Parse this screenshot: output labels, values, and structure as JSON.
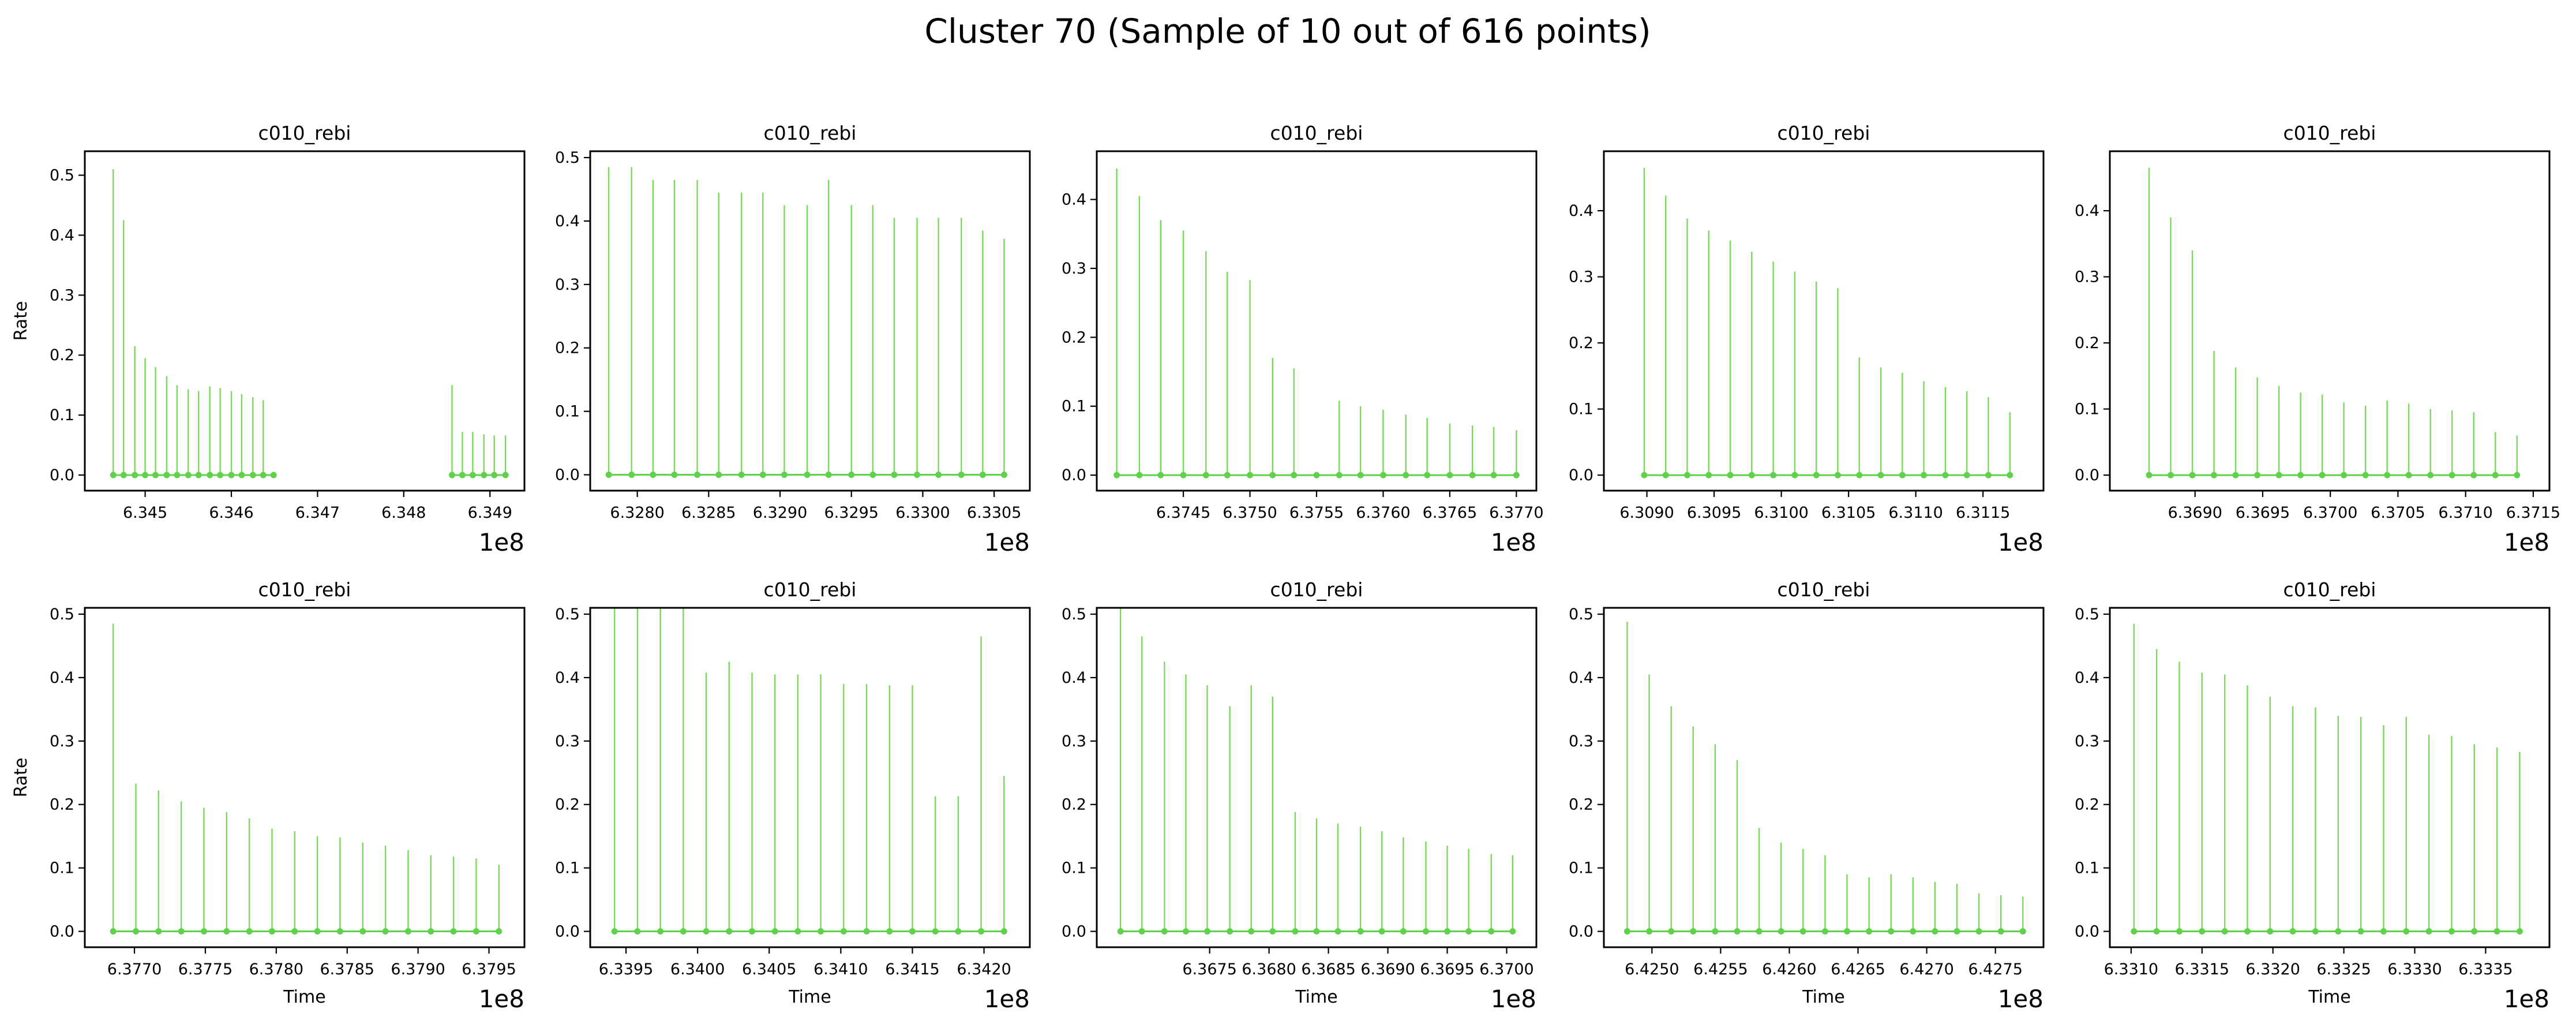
{
  "figure": {
    "title": "Cluster 70 (Sample of 10 out of 616 points)",
    "stem_color": "#79d95f",
    "marker_color": "#5fd14a"
  },
  "chart_data": [
    {
      "type": "stem",
      "title": "c010_rebi",
      "xlabel": "",
      "ylabel": "Rate",
      "x_offset_label": "1e8",
      "xlim": [
        6.3443,
        6.3494
      ],
      "ylim": [
        -0.026,
        0.54
      ],
      "xticks": [
        6.345,
        6.346,
        6.347,
        6.348,
        6.349
      ],
      "xtick_labels": [
        "6.345",
        "6.346",
        "6.347",
        "6.348",
        "6.349"
      ],
      "yticks": [
        0.0,
        0.1,
        0.2,
        0.3,
        0.4,
        0.5
      ],
      "ytick_labels": [
        "0.0",
        "0.1",
        "0.2",
        "0.3",
        "0.4",
        "0.5"
      ],
      "x": [
        6.34463,
        6.34475,
        6.34488,
        6.345,
        6.34512,
        6.34525,
        6.34537,
        6.3455,
        6.34562,
        6.34575,
        6.34587,
        6.346,
        6.34612,
        6.34625,
        6.34637,
        6.34649,
        6.34856,
        6.34868,
        6.3488,
        6.34893,
        6.34905,
        6.34918
      ],
      "y": [
        0.51,
        0.425,
        0.215,
        0.195,
        0.18,
        0.165,
        0.15,
        0.143,
        0.14,
        0.148,
        0.145,
        0.14,
        0.135,
        0.13,
        0.125,
        0.0,
        0.15,
        0.072,
        0.072,
        0.068,
        0.066,
        0.066
      ]
    },
    {
      "type": "stem",
      "title": "c010_rebi",
      "xlabel": "",
      "ylabel": "",
      "x_offset_label": "1e8",
      "xlim": [
        6.32767,
        6.33075
      ],
      "ylim": [
        -0.025,
        0.51
      ],
      "xticks": [
        6.328,
        6.3285,
        6.329,
        6.3295,
        6.33,
        6.3305
      ],
      "xtick_labels": [
        "6.3280",
        "6.3285",
        "6.3290",
        "6.3295",
        "6.3300",
        "6.3305"
      ],
      "yticks": [
        0.0,
        0.1,
        0.2,
        0.3,
        0.4,
        0.5
      ],
      "ytick_labels": [
        "0.0",
        "0.1",
        "0.2",
        "0.3",
        "0.4",
        "0.5"
      ],
      "x": [
        6.3278,
        6.32796,
        6.32811,
        6.32826,
        6.32842,
        6.32857,
        6.32873,
        6.32888,
        6.32903,
        6.32919,
        6.32934,
        6.3295,
        6.32965,
        6.3298,
        6.32996,
        6.33011,
        6.33027,
        6.33042,
        6.33057
      ],
      "y": [
        0.485,
        0.485,
        0.465,
        0.465,
        0.465,
        0.445,
        0.445,
        0.445,
        0.425,
        0.425,
        0.465,
        0.425,
        0.425,
        0.405,
        0.405,
        0.405,
        0.405,
        0.385,
        0.372
      ]
    },
    {
      "type": "stem",
      "title": "c010_rebi",
      "xlabel": "",
      "ylabel": "",
      "x_offset_label": "1e8",
      "xlim": [
        6.37385,
        6.37715
      ],
      "ylim": [
        -0.0225,
        0.47
      ],
      "xticks": [
        6.3745,
        6.375,
        6.3755,
        6.376,
        6.3765,
        6.377
      ],
      "xtick_labels": [
        "6.3745",
        "6.3750",
        "6.3755",
        "6.3760",
        "6.3765",
        "6.3770"
      ],
      "yticks": [
        0.0,
        0.1,
        0.2,
        0.3,
        0.4
      ],
      "ytick_labels": [
        "0.0",
        "0.1",
        "0.2",
        "0.3",
        "0.4"
      ],
      "x": [
        6.374,
        6.37417,
        6.37433,
        6.3745,
        6.37467,
        6.37483,
        6.375,
        6.37517,
        6.37533,
        6.3755,
        6.37567,
        6.37583,
        6.376,
        6.37617,
        6.37633,
        6.3765,
        6.37667,
        6.37683,
        6.377
      ],
      "y": [
        0.445,
        0.405,
        0.37,
        0.355,
        0.325,
        0.295,
        0.283,
        0.17,
        0.155,
        0.0,
        0.108,
        0.1,
        0.095,
        0.088,
        0.083,
        0.075,
        0.072,
        0.07,
        0.065
      ]
    },
    {
      "type": "stem",
      "title": "c010_rebi",
      "xlabel": "",
      "ylabel": "",
      "x_offset_label": "1e8",
      "xlim": [
        6.30868,
        6.31195
      ],
      "ylim": [
        -0.0235,
        0.49
      ],
      "xticks": [
        6.309,
        6.3095,
        6.31,
        6.3105,
        6.311,
        6.3115
      ],
      "xtick_labels": [
        "6.3090",
        "6.3095",
        "6.3100",
        "6.3105",
        "6.3110",
        "6.3115"
      ],
      "yticks": [
        0.0,
        0.1,
        0.2,
        0.3,
        0.4
      ],
      "ytick_labels": [
        "0.0",
        "0.1",
        "0.2",
        "0.3",
        "0.4"
      ],
      "x": [
        6.30898,
        6.30914,
        6.3093,
        6.30946,
        6.30962,
        6.30978,
        6.30994,
        6.3101,
        6.31026,
        6.31042,
        6.31058,
        6.31074,
        6.3109,
        6.31106,
        6.31122,
        6.31138,
        6.31154,
        6.3117
      ],
      "y": [
        0.465,
        0.423,
        0.388,
        0.37,
        0.355,
        0.338,
        0.323,
        0.308,
        0.293,
        0.283,
        0.178,
        0.163,
        0.155,
        0.142,
        0.133,
        0.127,
        0.118,
        0.095
      ]
    },
    {
      "type": "stem",
      "title": "c010_rebi",
      "xlabel": "",
      "ylabel": "",
      "x_offset_label": "1e8",
      "xlim": [
        6.36837,
        6.37162
      ],
      "ylim": [
        -0.0235,
        0.49
      ],
      "xticks": [
        6.369,
        6.3695,
        6.37,
        6.3705,
        6.371,
        6.3715
      ],
      "xtick_labels": [
        "6.3690",
        "6.3695",
        "6.3700",
        "6.3705",
        "6.3710",
        "6.3715"
      ],
      "yticks": [
        0.0,
        0.1,
        0.2,
        0.3,
        0.4
      ],
      "ytick_labels": [
        "0.0",
        "0.1",
        "0.2",
        "0.3",
        "0.4"
      ],
      "x": [
        6.36866,
        6.36882,
        6.36898,
        6.36914,
        6.3693,
        6.36946,
        6.36962,
        6.36978,
        6.36994,
        6.3701,
        6.37026,
        6.37042,
        6.37058,
        6.37074,
        6.3709,
        6.37106,
        6.37122,
        6.37138
      ],
      "y": [
        0.465,
        0.39,
        0.34,
        0.188,
        0.163,
        0.148,
        0.135,
        0.125,
        0.122,
        0.11,
        0.105,
        0.113,
        0.108,
        0.1,
        0.098,
        0.095,
        0.065,
        0.06
      ]
    },
    {
      "type": "stem",
      "title": "c010_rebi",
      "xlabel": "Time",
      "ylabel": "Rate",
      "x_offset_label": "1e8",
      "xlim": [
        6.37665,
        6.37975
      ],
      "ylim": [
        -0.025,
        0.51
      ],
      "xticks": [
        6.377,
        6.3775,
        6.378,
        6.3785,
        6.379,
        6.3795
      ],
      "xtick_labels": [
        "6.3770",
        "6.3775",
        "6.3780",
        "6.3785",
        "6.3790",
        "6.3795"
      ],
      "yticks": [
        0.0,
        0.1,
        0.2,
        0.3,
        0.4,
        0.5
      ],
      "ytick_labels": [
        "0.0",
        "0.1",
        "0.2",
        "0.3",
        "0.4",
        "0.5"
      ],
      "x": [
        6.37685,
        6.37701,
        6.37717,
        6.37733,
        6.37749,
        6.37765,
        6.37781,
        6.37797,
        6.37813,
        6.37829,
        6.37845,
        6.37861,
        6.37877,
        6.37893,
        6.37909,
        6.37925,
        6.37941,
        6.37957
      ],
      "y": [
        0.485,
        0.233,
        0.222,
        0.205,
        0.195,
        0.188,
        0.178,
        0.162,
        0.158,
        0.15,
        0.148,
        0.14,
        0.135,
        0.128,
        0.12,
        0.118,
        0.115,
        0.105
      ]
    },
    {
      "type": "stem",
      "title": "c010_rebi",
      "xlabel": "Time",
      "ylabel": "",
      "x_offset_label": "1e8",
      "xlim": [
        6.33925,
        6.34232
      ],
      "ylim": [
        -0.025,
        0.51
      ],
      "xticks": [
        6.3395,
        6.34,
        6.3405,
        6.341,
        6.3415,
        6.342
      ],
      "xtick_labels": [
        "6.3395",
        "6.3400",
        "6.3405",
        "6.3410",
        "6.3415",
        "6.3420"
      ],
      "yticks": [
        0.0,
        0.1,
        0.2,
        0.3,
        0.4,
        0.5
      ],
      "ytick_labels": [
        "0.0",
        "0.1",
        "0.2",
        "0.3",
        "0.4",
        "0.5"
      ],
      "x": [
        6.33942,
        6.33958,
        6.33974,
        6.3399,
        6.34006,
        6.34022,
        6.34038,
        6.34054,
        6.3407,
        6.34086,
        6.34102,
        6.34118,
        6.34134,
        6.3415,
        6.34166,
        6.34182,
        6.34198,
        6.34214
      ],
      "y": [
        0.51,
        0.51,
        0.51,
        0.51,
        0.408,
        0.425,
        0.408,
        0.405,
        0.405,
        0.405,
        0.39,
        0.39,
        0.388,
        0.388,
        0.213,
        0.213,
        0.465,
        0.245
      ]
    },
    {
      "type": "stem",
      "title": "c010_rebi",
      "xlabel": "Time",
      "ylabel": "",
      "x_offset_label": "1e8",
      "xlim": [
        6.36655,
        6.37025
      ],
      "ylim": [
        -0.025,
        0.51
      ],
      "xticks": [
        6.3675,
        6.368,
        6.3685,
        6.369,
        6.3695,
        6.37
      ],
      "xtick_labels": [
        "6.3675",
        "6.3680",
        "6.3685",
        "6.3690",
        "6.3695",
        "6.3700"
      ],
      "yticks": [
        0.0,
        0.1,
        0.2,
        0.3,
        0.4,
        0.5
      ],
      "ytick_labels": [
        "0.0",
        "0.1",
        "0.2",
        "0.3",
        "0.4",
        "0.5"
      ],
      "x": [
        6.36675,
        6.36693,
        6.36712,
        6.3673,
        6.36748,
        6.36767,
        6.36785,
        6.36803,
        6.36822,
        6.3684,
        6.36858,
        6.36877,
        6.36895,
        6.36913,
        6.36932,
        6.3695,
        6.36968,
        6.36987,
        6.37005
      ],
      "y": [
        0.51,
        0.465,
        0.425,
        0.405,
        0.388,
        0.355,
        0.388,
        0.37,
        0.188,
        0.178,
        0.17,
        0.165,
        0.158,
        0.148,
        0.142,
        0.135,
        0.13,
        0.122,
        0.12
      ]
    },
    {
      "type": "stem",
      "title": "c010_rebi",
      "xlabel": "Time",
      "ylabel": "",
      "x_offset_label": "1e8",
      "xlim": [
        6.42465,
        6.42785
      ],
      "ylim": [
        -0.025,
        0.51
      ],
      "xticks": [
        6.425,
        6.4255,
        6.426,
        6.4265,
        6.427,
        6.4275
      ],
      "xtick_labels": [
        "6.4250",
        "6.4255",
        "6.4260",
        "6.4265",
        "6.4270",
        "6.4275"
      ],
      "yticks": [
        0.0,
        0.1,
        0.2,
        0.3,
        0.4,
        0.5
      ],
      "ytick_labels": [
        "0.0",
        "0.1",
        "0.2",
        "0.3",
        "0.4",
        "0.5"
      ],
      "x": [
        6.42482,
        6.42498,
        6.42514,
        6.4253,
        6.42546,
        6.42562,
        6.42578,
        6.42594,
        6.4261,
        6.42626,
        6.42642,
        6.42658,
        6.42674,
        6.4269,
        6.42706,
        6.42722,
        6.42738,
        6.42754,
        6.4277
      ],
      "y": [
        0.488,
        0.405,
        0.355,
        0.323,
        0.295,
        0.27,
        0.163,
        0.14,
        0.13,
        0.12,
        0.09,
        0.085,
        0.09,
        0.085,
        0.078,
        0.075,
        0.06,
        0.057,
        0.055
      ]
    },
    {
      "type": "stem",
      "title": "c010_rebi",
      "xlabel": "Time",
      "ylabel": "",
      "x_offset_label": "1e8",
      "xlim": [
        6.33085,
        6.33395
      ],
      "ylim": [
        -0.025,
        0.51
      ],
      "xticks": [
        6.331,
        6.3315,
        6.332,
        6.3325,
        6.333,
        6.3335
      ],
      "xtick_labels": [
        "6.3310",
        "6.3315",
        "6.3320",
        "6.3325",
        "6.3330",
        "6.3335"
      ],
      "yticks": [
        0.0,
        0.1,
        0.2,
        0.3,
        0.4,
        0.5
      ],
      "ytick_labels": [
        "0.0",
        "0.1",
        "0.2",
        "0.3",
        "0.4",
        "0.5"
      ],
      "x": [
        6.33102,
        6.33118,
        6.33134,
        6.3315,
        6.33166,
        6.33182,
        6.33198,
        6.33214,
        6.3323,
        6.33246,
        6.33262,
        6.33278,
        6.33294,
        6.3331,
        6.33326,
        6.33342,
        6.33358,
        6.33374
      ],
      "y": [
        0.485,
        0.445,
        0.425,
        0.408,
        0.405,
        0.388,
        0.37,
        0.355,
        0.353,
        0.34,
        0.338,
        0.325,
        0.338,
        0.31,
        0.308,
        0.295,
        0.29,
        0.283
      ]
    }
  ]
}
